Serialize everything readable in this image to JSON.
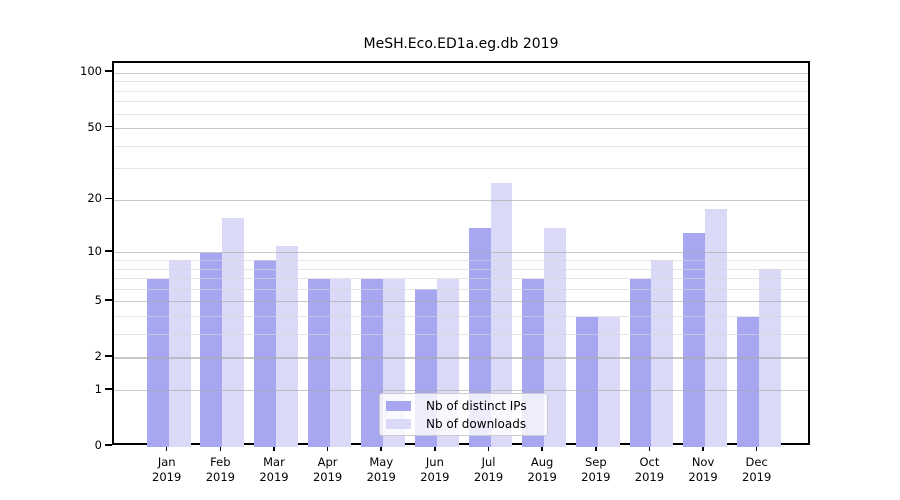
{
  "title": "MeSH.Eco.ED1a.eg.db 2019",
  "chart_data": {
    "type": "bar",
    "title": "MeSH.Eco.ED1a.eg.db 2019",
    "yscale": "log1p",
    "grid": true,
    "legend_position": "lower center",
    "categories": [
      "Jan",
      "Feb",
      "Mar",
      "Apr",
      "May",
      "Jun",
      "Jul",
      "Aug",
      "Sep",
      "Oct",
      "Nov",
      "Dec"
    ],
    "category_year": "2019",
    "series": [
      {
        "name": "Nb of distinct IPs",
        "color": "#a6a6f1",
        "values": [
          7,
          10,
          9,
          7,
          7,
          6,
          14,
          7,
          4,
          7,
          13,
          4
        ]
      },
      {
        "name": "Nb of downloads",
        "color": "#dadaf8",
        "values": [
          9,
          16,
          11,
          7,
          7,
          7,
          25,
          14,
          4,
          9,
          18,
          8
        ]
      }
    ],
    "y_ticks": [
      0,
      1,
      2,
      5,
      10,
      20,
      50,
      100
    ],
    "y_minor_ticks": [
      3,
      4,
      6,
      7,
      8,
      9,
      30,
      40,
      60,
      70,
      80,
      90
    ],
    "ylim": [
      0,
      114
    ]
  }
}
